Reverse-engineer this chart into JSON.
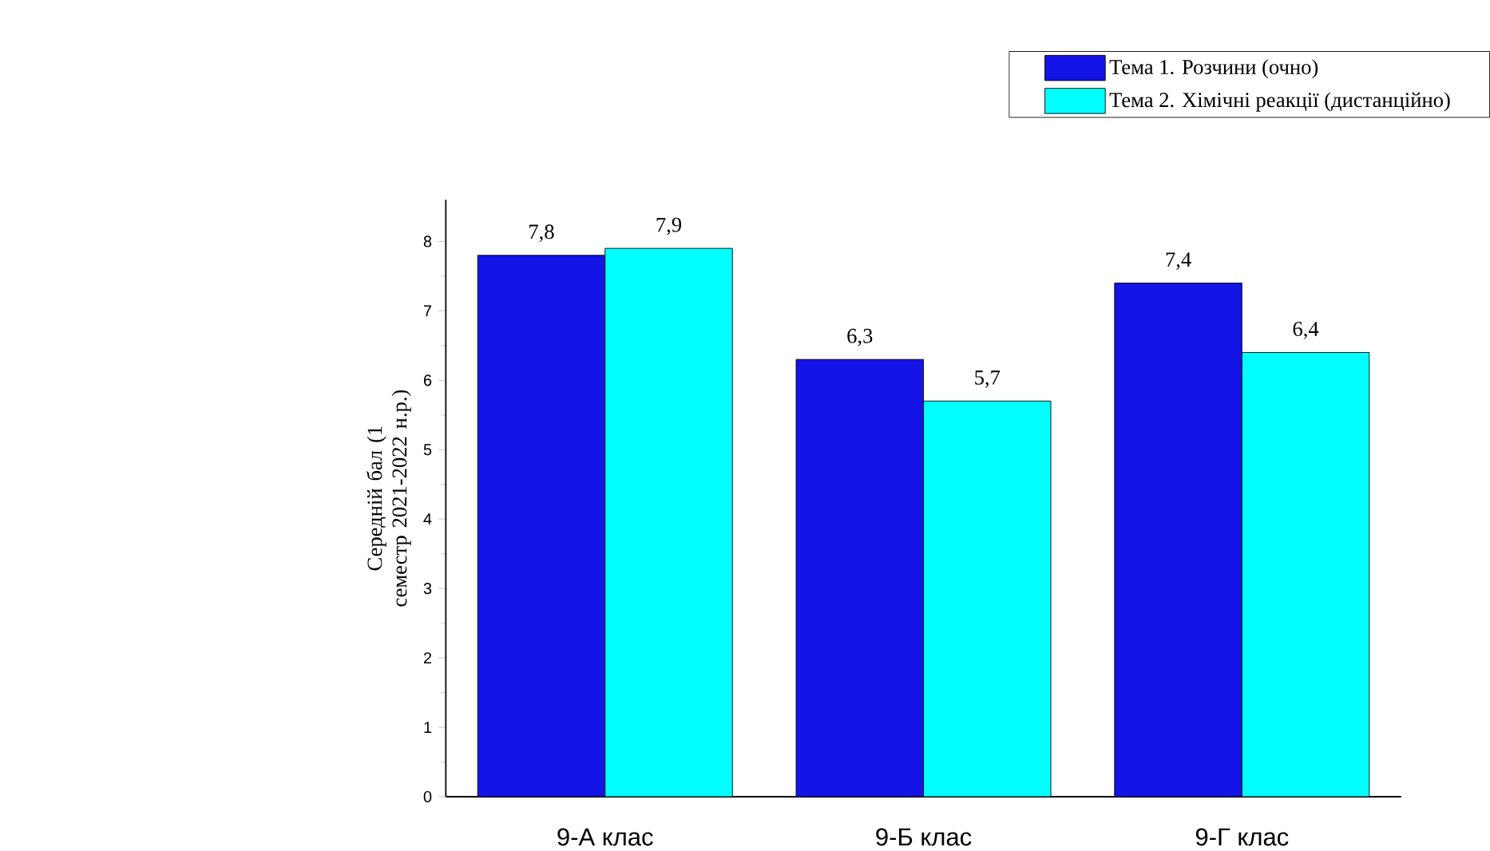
{
  "chart_data": {
    "type": "bar",
    "categories": [
      "9-А клас",
      "9-Б клас",
      "9-Г клас"
    ],
    "ylabel": "Середній бал (1 семестр 2021-2022 н.р.)",
    "series": [
      {
        "name": "Тема 1. Розчини (очно)",
        "color": "#1414e6",
        "values": [
          7.8,
          6.3,
          7.4
        ],
        "value_labels": [
          "7,8",
          "6,3",
          "7,4"
        ]
      },
      {
        "name": "Тема 2. Хімічні реакції (дистанційно)",
        "color": "#00ffff",
        "values": [
          7.9,
          5.7,
          6.4
        ],
        "value_labels": [
          "7,9",
          "5,7",
          "6,4"
        ]
      }
    ],
    "ylim": [
      0,
      8.6
    ],
    "yticks": [
      0,
      1,
      2,
      3,
      4,
      5,
      6,
      7,
      8
    ],
    "legend": "top right",
    "grid": false
  }
}
